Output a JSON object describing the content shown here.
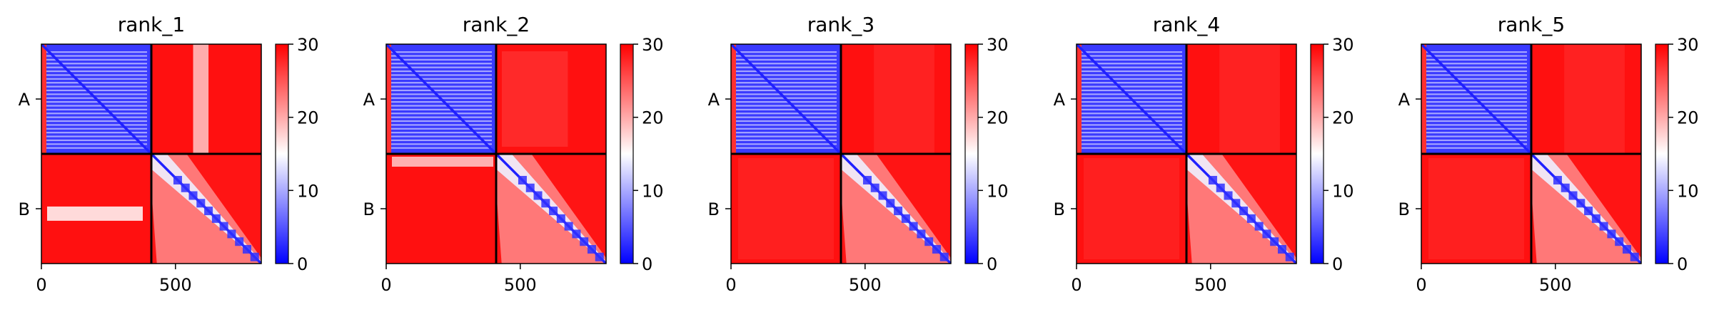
{
  "chart_data": {
    "type": "heatmap",
    "colormap": {
      "low": "#0000ff",
      "mid": "#ffffff",
      "high": "#ff0000"
    },
    "color_range": [
      0,
      30
    ],
    "colorbar_ticks": [
      0,
      10,
      20,
      30
    ],
    "x_ticks": [
      0,
      500
    ],
    "x_range": [
      0,
      820
    ],
    "chain_boundary": 410,
    "chains": [
      "A",
      "B"
    ],
    "panels": [
      {
        "title": "rank_1"
      },
      {
        "title": "rank_2"
      },
      {
        "title": "rank_3"
      },
      {
        "title": "rank_4"
      },
      {
        "title": "rank_5"
      }
    ]
  }
}
